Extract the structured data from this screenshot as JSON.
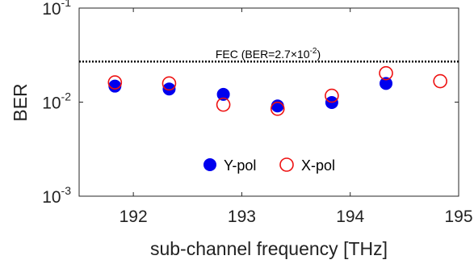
{
  "chart_data": {
    "type": "scatter",
    "xlabel": "sub-channel frequency [THz]",
    "ylabel": "BER",
    "xlim": [
      191.5,
      195
    ],
    "ylim": [
      0.001,
      0.1
    ],
    "yscale": "log",
    "grid": false,
    "x_ticks": [
      "192",
      "193",
      "194",
      "195"
    ],
    "y_ticks": [
      {
        "value": 0.1,
        "base": "10",
        "exp": "-1"
      },
      {
        "value": 0.01,
        "base": "10",
        "exp": "-2"
      },
      {
        "value": 0.001,
        "base": "10",
        "exp": "-3"
      }
    ],
    "series": [
      {
        "name": "Y-pol",
        "marker": "filled-circle",
        "color": "#0000ee",
        "x": [
          191.83,
          192.33,
          192.83,
          193.33,
          193.83,
          194.33
        ],
        "y": [
          0.0148,
          0.0138,
          0.0121,
          0.0091,
          0.0099,
          0.0158
        ]
      },
      {
        "name": "X-pol",
        "marker": "open-circle",
        "color": "#ee1111",
        "x": [
          191.83,
          192.33,
          192.83,
          193.33,
          193.83,
          194.33,
          194.83
        ],
        "y": [
          0.0162,
          0.0158,
          0.0094,
          0.0085,
          0.0117,
          0.0203,
          0.0167
        ]
      }
    ],
    "threshold": {
      "value": 0.027,
      "style": "dotted",
      "label_prefix": "FEC (BER=2.7×10",
      "label_exp": "-2",
      "label_suffix": ")"
    },
    "legend": {
      "placement": "bottom-center"
    }
  }
}
